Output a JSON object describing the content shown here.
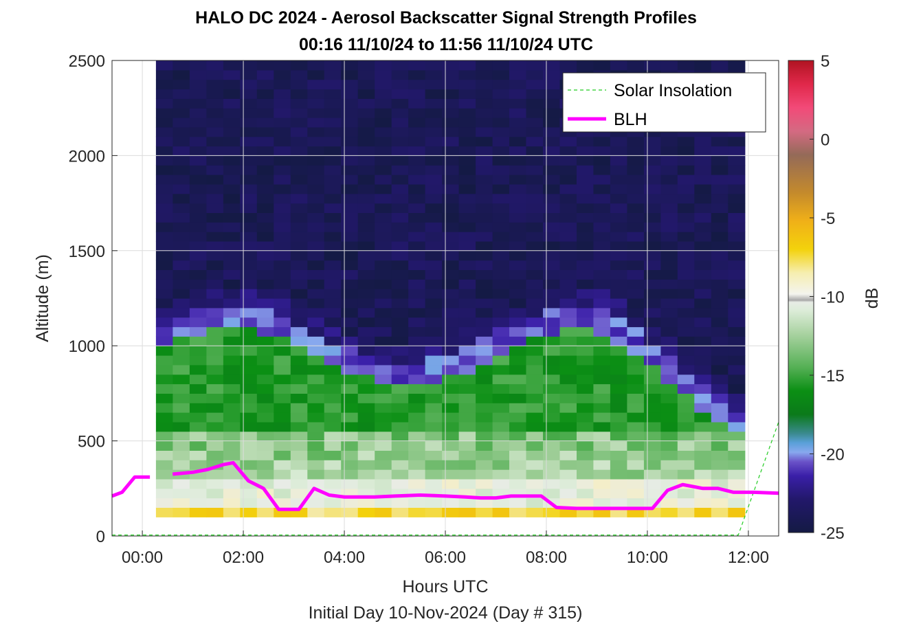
{
  "chart_data": {
    "type": "heatmap",
    "title": "HALO DC 2024 - Aerosol Backscatter Signal Strength Profiles",
    "subtitle": "00:16 11/10/24 to 11:56 11/10/24  UTC",
    "xlabel": "Hours UTC",
    "xlabel2": "Initial Day 10-Nov-2024 (Day # 315)",
    "ylabel": "Altitude (m)",
    "xlim": [
      -0.6,
      12.6
    ],
    "ylim": [
      0,
      2500
    ],
    "x_tick_labels": [
      "00:00",
      "02:00",
      "04:00",
      "06:00",
      "08:00",
      "10:00",
      "12:00"
    ],
    "x_tick_values": [
      0,
      2,
      4,
      6,
      8,
      10,
      12
    ],
    "y_tick_values": [
      0,
      500,
      1000,
      1500,
      2000,
      2500
    ],
    "grid": true,
    "legend_position": "top-right",
    "colorbar": {
      "label": "dB",
      "range": [
        -25,
        5
      ],
      "tick_values": [
        -25,
        -20,
        -15,
        -10,
        -5,
        0,
        5
      ],
      "tick_labels": [
        "-25",
        "-20",
        "-15",
        "-10",
        "-5",
        "0",
        "5"
      ]
    },
    "heatmap": {
      "time_start": 0.27,
      "time_end": 11.93,
      "altitude_start": 100,
      "altitude_end": 2500,
      "time_bins": 35,
      "altitude_bins": 48,
      "description_values_db": "near-surface ~-6 to -9 dB, mixed layer 300-1000 m ~-13 to -16 dB, above ~1100 m ~-23 to -25 dB"
    },
    "series": [
      {
        "name": "Solar Insolation",
        "style": "dashed",
        "color": "#22cc22",
        "x": [
          -0.6,
          11.8,
          12.6
        ],
        "y": [
          5,
          5,
          600
        ]
      },
      {
        "name": "BLH",
        "style": "solid",
        "color": "#ff00ff",
        "segments": [
          {
            "x": [
              -0.6,
              -0.4,
              -0.15,
              0.15
            ],
            "y": [
              210,
              230,
              310,
              310
            ]
          },
          {
            "x": [
              0.6,
              1.0,
              1.3,
              1.6,
              1.8,
              2.1,
              2.4,
              2.7,
              3.1,
              3.4,
              3.7,
              4.0,
              4.6,
              5.0,
              5.5,
              6.0,
              6.4,
              6.7,
              7.0,
              7.3,
              7.6,
              7.9,
              8.2,
              8.6,
              9.0,
              9.5,
              10.1,
              10.4,
              10.7,
              11.1,
              11.4,
              11.7,
              12.1,
              12.6
            ],
            "y": [
              325,
              335,
              350,
              375,
              385,
              290,
              250,
              140,
              140,
              250,
              215,
              205,
              205,
              210,
              215,
              210,
              205,
              200,
              200,
              210,
              210,
              210,
              150,
              145,
              145,
              145,
              145,
              240,
              270,
              250,
              250,
              230,
              230,
              225
            ]
          }
        ]
      }
    ]
  }
}
